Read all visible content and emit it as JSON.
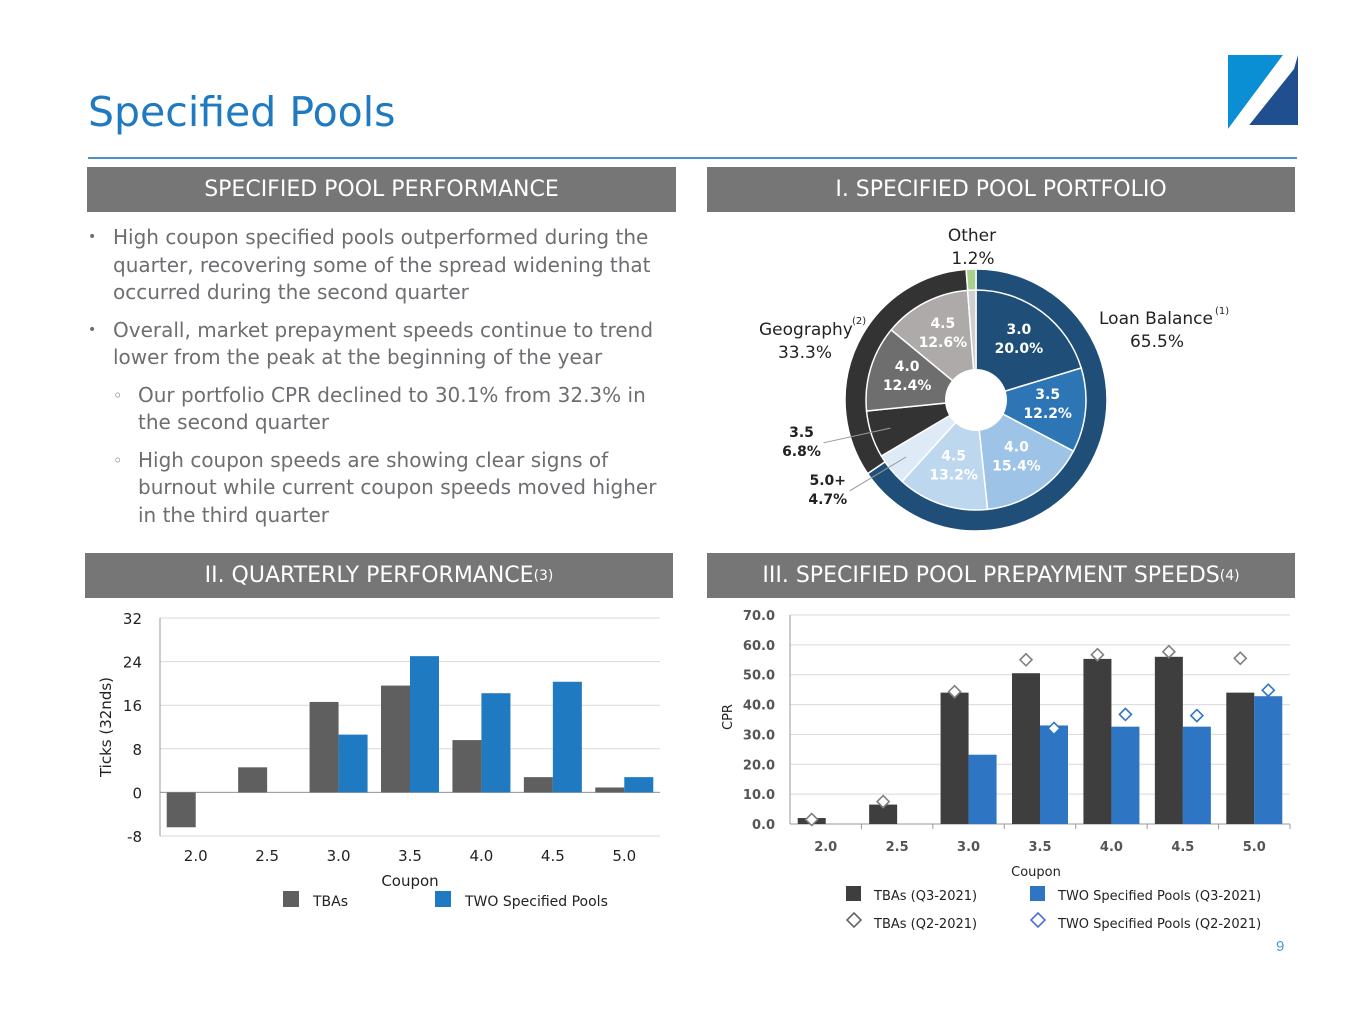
{
  "page": {
    "title": "Specified Pools",
    "page_number": "9"
  },
  "colors": {
    "title_blue": "#1f7ac1",
    "banner_gray": "#767676",
    "tba_gray": "#5f5f5f",
    "two_blue": "#1f7ac1",
    "tba_dark": "#3e3e3e",
    "speed_blue": "#2e75c3"
  },
  "logo": {
    "icon": "two-harbors-logo-icon"
  },
  "performance": {
    "header": "SPECIFIED POOL PERFORMANCE",
    "bullets": [
      {
        "level": 1,
        "text": "High coupon specified pools outperformed during the quarter, recovering some of the spread widening that occurred during the second quarter"
      },
      {
        "level": 1,
        "text": "Overall, market prepayment speeds continue to trend lower from the peak at the beginning of the year"
      },
      {
        "level": 2,
        "text": "Our portfolio CPR declined to 30.1% from 32.3% in the second quarter"
      },
      {
        "level": 2,
        "text": "High coupon speeds are showing clear signs of burnout while current coupon speeds moved higher in the third quarter"
      }
    ]
  },
  "portfolio": {
    "header": "I. SPECIFIED POOL PORTFOLIO",
    "outer_labels": {
      "other_name": "Other",
      "other_value": "1.2%",
      "loan_balance_name": "Loan Balance",
      "loan_balance_note": "(1)",
      "loan_balance_value": "65.5%",
      "geography_name": "Geography",
      "geography_note": "(2)",
      "geography_value": "33.3%"
    }
  },
  "quarterly": {
    "header": "II. QUARTERLY PERFORMANCE",
    "header_note": "(3)"
  },
  "speeds": {
    "header": "III. SPECIFIED POOL PREPAYMENT SPEEDS",
    "header_note": "(4)"
  },
  "chart_data": [
    {
      "type": "pie",
      "variant": "nested-donut",
      "title": "I. SPECIFIED POOL PORTFOLIO",
      "outer_ring": [
        {
          "name": "Loan Balance",
          "value": 65.5,
          "label": "65.5%",
          "color": "#1f4e79"
        },
        {
          "name": "Geography",
          "value": 33.3,
          "label": "33.3%",
          "color": "#333333"
        },
        {
          "name": "Other",
          "value": 1.2,
          "label": "1.2%",
          "color": "#a9d18e"
        }
      ],
      "inner_ring": [
        {
          "group": "Loan Balance",
          "coupon": "3.0",
          "value": 20.0,
          "label": "20.0%",
          "color": "#1f4e79"
        },
        {
          "group": "Loan Balance",
          "coupon": "3.5",
          "value": 12.2,
          "label": "12.2%",
          "color": "#2e75b6"
        },
        {
          "group": "Loan Balance",
          "coupon": "4.0",
          "value": 15.4,
          "label": "15.4%",
          "color": "#9dc3e6"
        },
        {
          "group": "Loan Balance",
          "coupon": "4.5",
          "value": 13.2,
          "label": "13.2%",
          "color": "#bdd7ee"
        },
        {
          "group": "Loan Balance",
          "coupon": "5.0+",
          "value": 4.7,
          "label": "4.7%",
          "color": "#deebf7"
        },
        {
          "group": "Geography",
          "coupon": "3.5",
          "value": 6.8,
          "label": "6.8%",
          "color": "#333333"
        },
        {
          "group": "Geography",
          "coupon": "4.0",
          "value": 12.4,
          "label": "12.4%",
          "color": "#6e6e6e"
        },
        {
          "group": "Geography",
          "coupon": "4.5",
          "value": 12.6,
          "label": "12.6%",
          "color": "#aeaaaa"
        },
        {
          "group": "Other",
          "coupon": "",
          "value": 1.2,
          "label": "",
          "color": "#d0cece"
        }
      ]
    },
    {
      "type": "bar",
      "title": "II. QUARTERLY PERFORMANCE",
      "xlabel": "Coupon",
      "ylabel": "Ticks (32nds)",
      "ylim": [
        -8,
        32
      ],
      "yticks": [
        -8,
        0,
        8,
        16,
        24,
        32
      ],
      "categories": [
        "2.0",
        "2.5",
        "3.0",
        "3.5",
        "4.0",
        "4.5",
        "5.0"
      ],
      "series": [
        {
          "name": "TBAs",
          "color": "#5f5f5f",
          "values": [
            -6.4,
            4.6,
            16.6,
            19.6,
            9.6,
            2.8,
            0.9
          ]
        },
        {
          "name": "TWO Specified Pools",
          "color": "#1f7ac1",
          "values": [
            null,
            null,
            10.6,
            25.0,
            18.2,
            20.3,
            2.8
          ]
        }
      ],
      "legend": "bottom"
    },
    {
      "type": "bar",
      "title": "III. SPECIFIED POOL PREPAYMENT SPEEDS",
      "xlabel": "Coupon",
      "ylabel": "CPR",
      "ylim": [
        0,
        70
      ],
      "yticks": [
        "0.0",
        "10.0",
        "20.0",
        "30.0",
        "40.0",
        "50.0",
        "60.0",
        "70.0"
      ],
      "categories": [
        "2.0",
        "2.5",
        "3.0",
        "3.5",
        "4.0",
        "4.5",
        "5.0"
      ],
      "series": [
        {
          "name": "TBAs (Q3-2021)",
          "kind": "bar",
          "color": "#3e3e3e",
          "values": [
            2.0,
            6.5,
            44.0,
            50.5,
            55.3,
            56.0,
            44.0
          ]
        },
        {
          "name": "TWO Specified Pools (Q3-2021)",
          "kind": "bar",
          "color": "#2e75c3",
          "values": [
            null,
            null,
            23.2,
            33.0,
            32.6,
            32.6,
            42.8
          ]
        },
        {
          "name": "TBAs (Q2-2021)",
          "kind": "marker",
          "color": "#7f7f7f",
          "values": [
            1.5,
            7.5,
            44.3,
            55.0,
            56.7,
            57.7,
            55.5
          ]
        },
        {
          "name": "TWO Specified Pools (Q2-2021)",
          "kind": "marker",
          "color": "#2e75c3",
          "values": [
            null,
            null,
            19.2,
            32.0,
            36.7,
            36.3,
            44.8
          ]
        }
      ],
      "legend": "bottom"
    }
  ]
}
